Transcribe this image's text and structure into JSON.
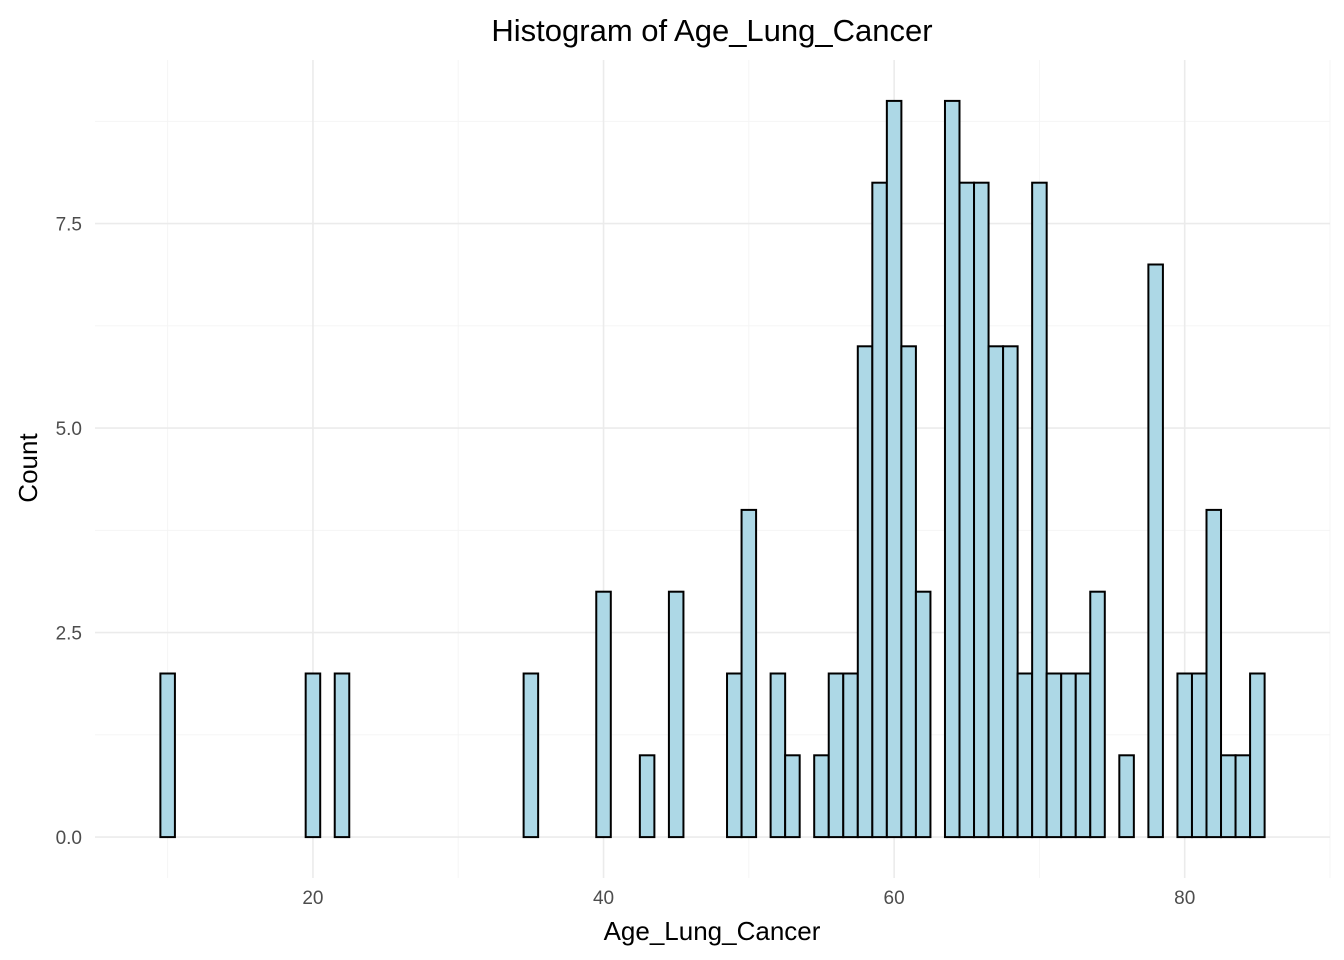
{
  "chart_data": {
    "type": "bar",
    "title": "Histogram of Age_Lung_Cancer",
    "xlabel": "Age_Lung_Cancer",
    "ylabel": "Count",
    "xlim": [
      5,
      90
    ],
    "ylim": [
      -0.5,
      9.5
    ],
    "x_ticks": [
      20,
      40,
      60,
      80
    ],
    "x_tick_labels": [
      "20",
      "40",
      "60",
      "80"
    ],
    "y_ticks": [
      0,
      2.5,
      5,
      7.5
    ],
    "y_tick_labels": [
      "0.0",
      "2.5",
      "5.0",
      "7.5"
    ],
    "grid": true,
    "bin_width": 1,
    "bin_start": 9.5,
    "counts": [
      2,
      0,
      0,
      0,
      0,
      0,
      0,
      0,
      0,
      0,
      2,
      0,
      2,
      0,
      0,
      0,
      0,
      0,
      0,
      0,
      0,
      0,
      0,
      0,
      0,
      2,
      0,
      0,
      0,
      0,
      3,
      0,
      0,
      1,
      0,
      3,
      0,
      0,
      0,
      2,
      4,
      0,
      2,
      1,
      0,
      1,
      2,
      2,
      6,
      8,
      9,
      6,
      3,
      0,
      9,
      8,
      8,
      6,
      6,
      2,
      8,
      2,
      2,
      2,
      3,
      0,
      1,
      0,
      7,
      0,
      2,
      2,
      4,
      1,
      1,
      2
    ]
  }
}
